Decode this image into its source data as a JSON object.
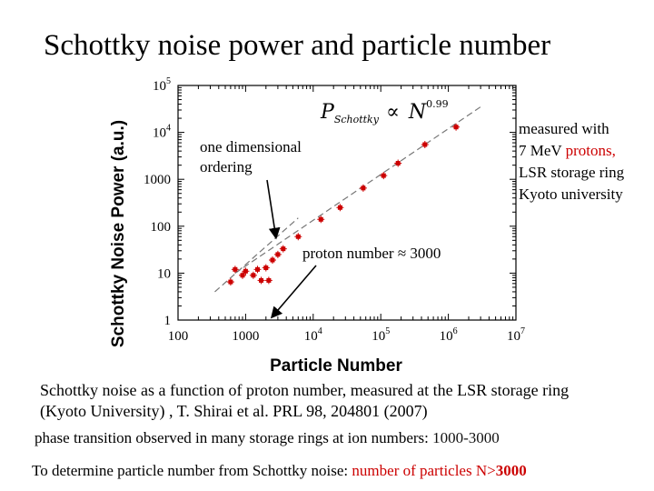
{
  "slide": {
    "title": "Schottky noise power and particle number",
    "anno_right_lines": [
      "measured with",
      "7 MeV ",
      "protons,",
      "LSR storage ring",
      "Kyoto university"
    ],
    "anno_left_lines": [
      "one dimensional",
      "ordering"
    ],
    "anno_proton": "proton number ≈ 3000",
    "caption_line1": "Schottky noise as a function of proton number, measured at the LSR storage ring",
    "caption_line2": "(Kyoto University) , T. Shirai et al. PRL 98, 204801 (2007)",
    "phase_text": "phase transition observed in many storage rings at ion numbers: ",
    "phase_range": "1000-3000",
    "determine_text": "To determine particle number from Schottky noise:  ",
    "determine_red": "number of particles N>",
    "determine_bold": "3000",
    "colors": {
      "red": "#cc0000",
      "marker": "#cc0000",
      "fit": "#777777",
      "arrow": "#000000"
    }
  },
  "chart_data": {
    "type": "scatter",
    "title": "",
    "formula": {
      "lhs": "P",
      "lhs_sub": "Schottky",
      "op": "∝",
      "rhs": "N",
      "exp": "0.99"
    },
    "xlabel": "Particle Number",
    "ylabel": "Schottky Noise Power (a.u.)",
    "xscale": "log",
    "yscale": "log",
    "xlim": [
      100,
      10000000
    ],
    "ylim": [
      1,
      100000
    ],
    "x_ticks": [
      {
        "value": 100,
        "label": "100"
      },
      {
        "value": 1000,
        "label": "1000"
      },
      {
        "value": 10000,
        "label": "10",
        "exp": "4"
      },
      {
        "value": 100000,
        "label": "10",
        "exp": "5"
      },
      {
        "value": 1000000,
        "label": "10",
        "exp": "6"
      },
      {
        "value": 10000000,
        "label": "10",
        "exp": "7"
      }
    ],
    "y_ticks": [
      {
        "value": 1,
        "label": "1"
      },
      {
        "value": 10,
        "label": "10"
      },
      {
        "value": 100,
        "label": "100"
      },
      {
        "value": 1000,
        "label": "1000"
      },
      {
        "value": 10000,
        "label": "10",
        "exp": "4"
      },
      {
        "value": 100000,
        "label": "10",
        "exp": "5"
      }
    ],
    "series": [
      {
        "name": "measured",
        "points": [
          {
            "x": 600,
            "y": 6.5
          },
          {
            "x": 700,
            "y": 12
          },
          {
            "x": 900,
            "y": 9
          },
          {
            "x": 1000,
            "y": 11
          },
          {
            "x": 1300,
            "y": 9
          },
          {
            "x": 1500,
            "y": 12
          },
          {
            "x": 1700,
            "y": 7
          },
          {
            "x": 2000,
            "y": 13
          },
          {
            "x": 2200,
            "y": 7
          },
          {
            "x": 2500,
            "y": 19
          },
          {
            "x": 3000,
            "y": 25
          },
          {
            "x": 3600,
            "y": 33
          },
          {
            "x": 6000,
            "y": 60
          },
          {
            "x": 13000,
            "y": 140
          },
          {
            "x": 25000,
            "y": 250
          },
          {
            "x": 55000,
            "y": 650
          },
          {
            "x": 110000,
            "y": 1200
          },
          {
            "x": 180000,
            "y": 2200
          },
          {
            "x": 450000,
            "y": 5500
          },
          {
            "x": 1300000,
            "y": 13000
          }
        ]
      }
    ],
    "fits": [
      {
        "name": "fit",
        "x": [
          700,
          3000000
        ],
        "y": [
          10,
          35000
        ]
      },
      {
        "name": "ordering",
        "x": [
          350,
          6000
        ],
        "y": [
          4,
          150
        ]
      }
    ]
  }
}
